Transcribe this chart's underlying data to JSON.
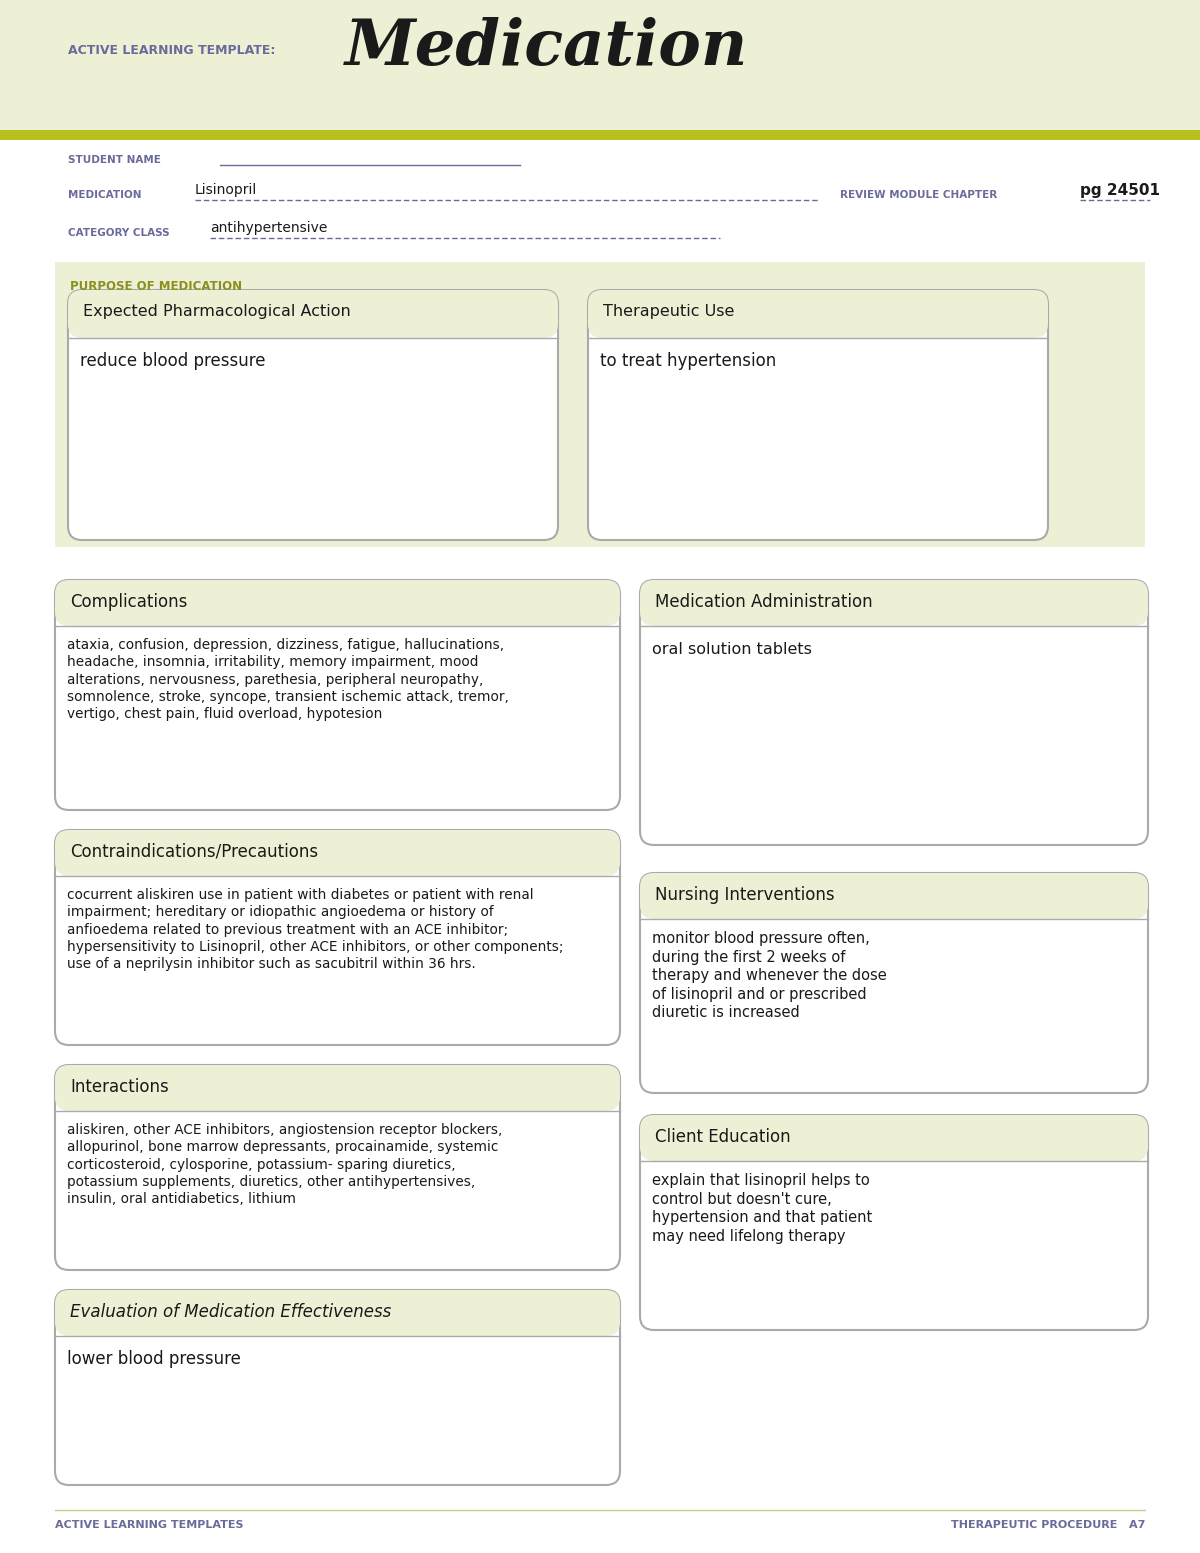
{
  "bg_color": "#eef0d5",
  "white": "#ffffff",
  "box_bg": "#eef0d5",
  "box_border": "#aaaaaa",
  "olive_green": "#8a9020",
  "purple_label": "#6b6b9b",
  "dark_text": "#1a1a1a",
  "olive_stripe": "#b8c020",
  "title_label": "ACTIVE LEARNING TEMPLATE:",
  "title_main": "Medication",
  "student_name_label": "STUDENT NAME",
  "medication_label": "MEDICATION",
  "medication_value": "Lisinopril",
  "review_label": "REVIEW MODULE CHAPTER",
  "review_value": "pg 24501",
  "category_label": "CATEGORY CLASS",
  "category_value": "antihypertensive",
  "purpose_label": "PURPOSE OF MEDICATION",
  "box1_title": "Expected Pharmacological Action",
  "box1_content": "reduce blood pressure",
  "box2_title": "Therapeutic Use",
  "box2_content": "to treat hypertension",
  "box3_title": "Complications",
  "box3_content": "ataxia, confusion, depression, dizziness, fatigue, hallucinations,\nheadache, insomnia, irritability, memory impairment, mood\nalterations, nervousness, parethesia, peripheral neuropathy,\nsomnolence, stroke, syncope, transient ischemic attack, tremor,\nvertigo, chest pain, fluid overload, hypotesion",
  "box4_title": "Medication Administration",
  "box4_content": "oral solution tablets",
  "box5_title": "Contraindications/Precautions",
  "box5_content": "cocurrent aliskiren use in patient with diabetes or patient with renal\nimpairment; hereditary or idiopathic angioedema or history of\nanfioedema related to previous treatment with an ACE inhibitor;\nhypersensitivity to Lisinopril, other ACE inhibitors, or other components;\nuse of a neprilysin inhibitor such as sacubitril within 36 hrs.",
  "box6_title": "Nursing Interventions",
  "box6_content": "monitor blood pressure often,\nduring the first 2 weeks of\ntherapy and whenever the dose\nof lisinopril and or prescribed\ndiuretic is increased",
  "box7_title": "Interactions",
  "box7_content": "aliskiren, other ACE inhibitors, angiostension receptor blockers,\nallopurinol, bone marrow depressants, procainamide, systemic\ncorticosteroid, cylosporine, potassium- sparing diuretics,\npotassium supplements, diuretics, other antihypertensives,\ninsulin, oral antidiabetics, lithium",
  "box8_title": "Client Education",
  "box8_content": "explain that lisinopril helps to\ncontrol but doesn't cure,\nhypertension and that patient\nmay need lifelong therapy",
  "box9_title": "Evaluation of Medication Effectiveness",
  "box9_content": "lower blood pressure",
  "footer_left": "ACTIVE LEARNING TEMPLATES",
  "footer_right": "THERAPEUTIC PROCEDURE   A7"
}
